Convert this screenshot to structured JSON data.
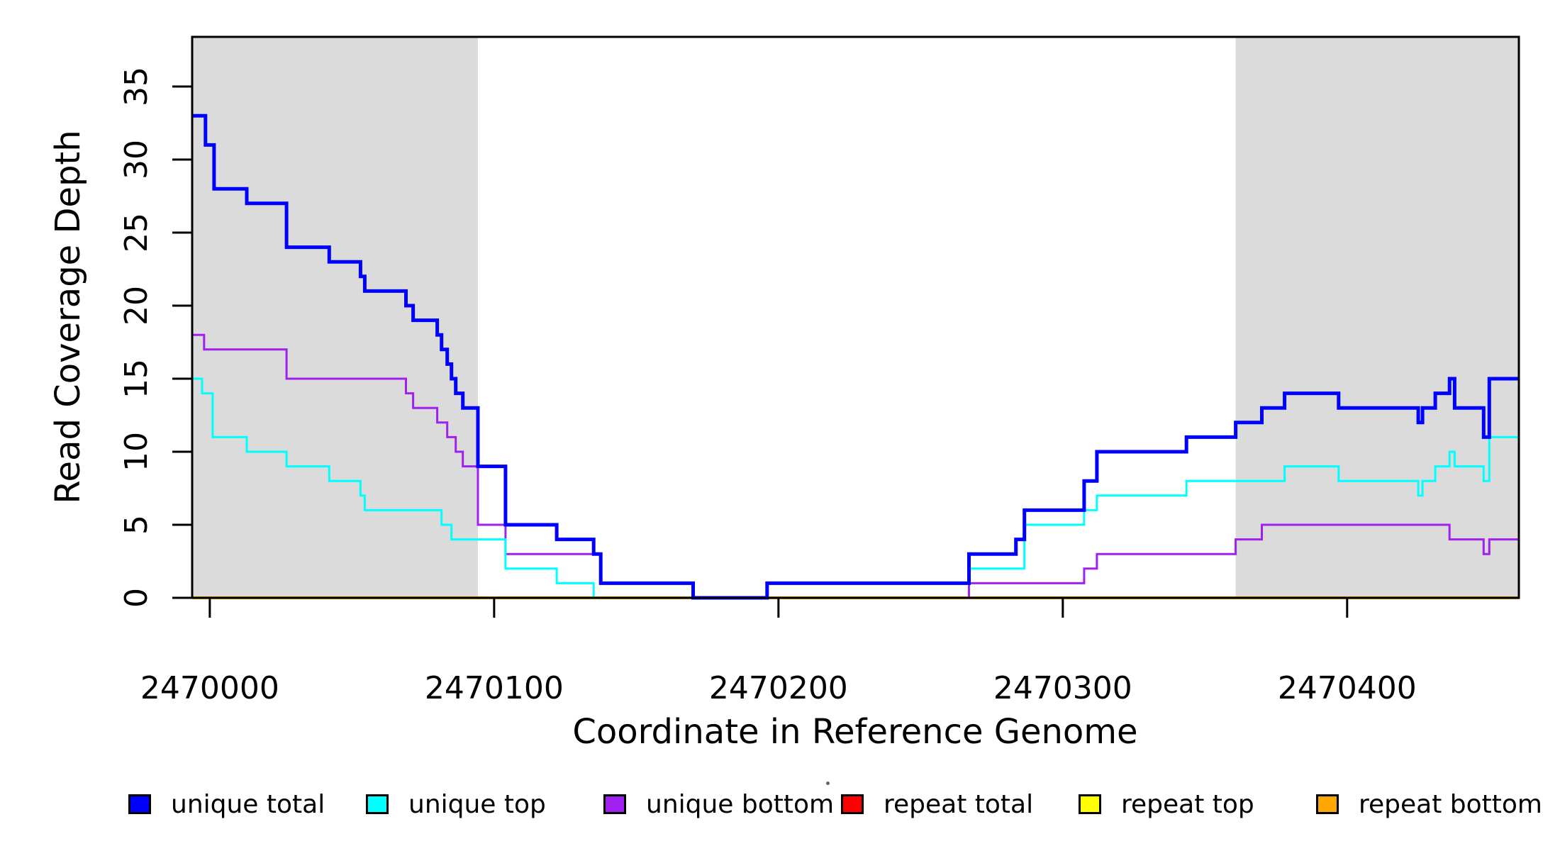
{
  "figure": {
    "background": "#FFFFFF",
    "axis_color": "#000000"
  },
  "chart_data": {
    "type": "line",
    "subtype": "step",
    "title": "",
    "xlabel": "Coordinate in Reference Genome",
    "ylabel": "Read Coverage Depth",
    "xlim": [
      2469993.8,
      2470460.4
    ],
    "ylim": [
      0,
      38.4
    ],
    "xticks": [
      2470000,
      2470100,
      2470200,
      2470300,
      2470400
    ],
    "yticks": [
      0,
      5,
      10,
      15,
      20,
      25,
      30,
      35
    ],
    "grid": false,
    "legend_position": "bottom",
    "shaded_regions": [
      {
        "x_start": 2469993.8,
        "x_end": 2470094.3,
        "color": "#DBDBDB"
      },
      {
        "x_start": 2470360.8,
        "x_end": 2470460.4,
        "color": "#DBDBDB"
      }
    ],
    "series": [
      {
        "name": "unique total",
        "color": "#0000FF",
        "line_width": 5,
        "points": [
          [
            2469993.8,
            33
          ],
          [
            2469998.5,
            31
          ],
          [
            2470001.5,
            28
          ],
          [
            2470013,
            27
          ],
          [
            2470027,
            24
          ],
          [
            2470042,
            23
          ],
          [
            2470053,
            22
          ],
          [
            2470054.5,
            21
          ],
          [
            2470069,
            20
          ],
          [
            2470071.5,
            19
          ],
          [
            2470080,
            18
          ],
          [
            2470081.5,
            17
          ],
          [
            2470083.5,
            16
          ],
          [
            2470085,
            15
          ],
          [
            2470086.5,
            14
          ],
          [
            2470089,
            13
          ],
          [
            2470094.3,
            9
          ],
          [
            2470104,
            5
          ],
          [
            2470122,
            4
          ],
          [
            2470135,
            3
          ],
          [
            2470137.5,
            1
          ],
          [
            2470170,
            0
          ],
          [
            2470196,
            1
          ],
          [
            2470267,
            3
          ],
          [
            2470283.5,
            4
          ],
          [
            2470286.5,
            6
          ],
          [
            2470307.5,
            8
          ],
          [
            2470312,
            10
          ],
          [
            2470343.5,
            11
          ],
          [
            2470360.8,
            12
          ],
          [
            2470370,
            13
          ],
          [
            2470378,
            14
          ],
          [
            2470397,
            13
          ],
          [
            2470425,
            12
          ],
          [
            2470426.5,
            13
          ],
          [
            2470431,
            14
          ],
          [
            2470436,
            15
          ],
          [
            2470437.8,
            13
          ],
          [
            2470448,
            11
          ],
          [
            2470450,
            15
          ]
        ]
      },
      {
        "name": "unique top",
        "color": "#00FFFF",
        "line_width": 3,
        "points": [
          [
            2469993.8,
            15
          ],
          [
            2469997.3,
            14
          ],
          [
            2470001,
            11
          ],
          [
            2470013,
            10
          ],
          [
            2470027,
            9
          ],
          [
            2470042,
            8
          ],
          [
            2470053,
            7
          ],
          [
            2470054.5,
            6
          ],
          [
            2470081.5,
            5
          ],
          [
            2470085,
            4
          ],
          [
            2470104,
            2
          ],
          [
            2470122,
            1
          ],
          [
            2470135,
            0
          ],
          [
            2470196,
            1
          ],
          [
            2470267,
            2
          ],
          [
            2470286.5,
            5
          ],
          [
            2470307.5,
            6
          ],
          [
            2470312,
            7
          ],
          [
            2470343.5,
            8
          ],
          [
            2470378,
            9
          ],
          [
            2470397,
            8
          ],
          [
            2470425,
            7
          ],
          [
            2470426.5,
            8
          ],
          [
            2470431,
            9
          ],
          [
            2470436,
            10
          ],
          [
            2470437.8,
            9
          ],
          [
            2470448,
            8
          ],
          [
            2470450,
            11
          ]
        ]
      },
      {
        "name": "unique bottom",
        "color": "#A020F0",
        "line_width": 3,
        "points": [
          [
            2469993.8,
            18
          ],
          [
            2469998,
            17
          ],
          [
            2470027,
            15
          ],
          [
            2470069,
            14
          ],
          [
            2470071.5,
            13
          ],
          [
            2470080,
            12
          ],
          [
            2470083.5,
            11
          ],
          [
            2470086.5,
            10
          ],
          [
            2470089,
            9
          ],
          [
            2470094.3,
            5
          ],
          [
            2470104,
            3
          ],
          [
            2470137.5,
            1
          ],
          [
            2470170,
            0
          ],
          [
            2470267,
            1
          ],
          [
            2470307.5,
            2
          ],
          [
            2470312,
            3
          ],
          [
            2470360.8,
            4
          ],
          [
            2470370,
            5
          ],
          [
            2470436,
            4
          ],
          [
            2470448,
            3
          ],
          [
            2470450,
            4
          ]
        ]
      },
      {
        "name": "repeat total",
        "color": "#FF0000",
        "line_width": 3,
        "points": [
          [
            2469993.8,
            0
          ]
        ]
      },
      {
        "name": "repeat top",
        "color": "#FFFF00",
        "line_width": 3,
        "points": [
          [
            2469993.8,
            0
          ]
        ]
      },
      {
        "name": "repeat bottom",
        "color": "#FFA500",
        "line_width": 4,
        "points": [
          [
            2469993.8,
            0
          ]
        ]
      }
    ]
  },
  "legend": {
    "items": [
      {
        "label": "unique total",
        "color": "#0000FF"
      },
      {
        "label": "unique top",
        "color": "#00FFFF"
      },
      {
        "label": "unique bottom",
        "color": "#A020F0"
      },
      {
        "label": "repeat total",
        "color": "#FF0000"
      },
      {
        "label": "repeat top",
        "color": "#FFFF00"
      },
      {
        "label": "repeat bottom",
        "color": "#FFA500"
      }
    ]
  }
}
